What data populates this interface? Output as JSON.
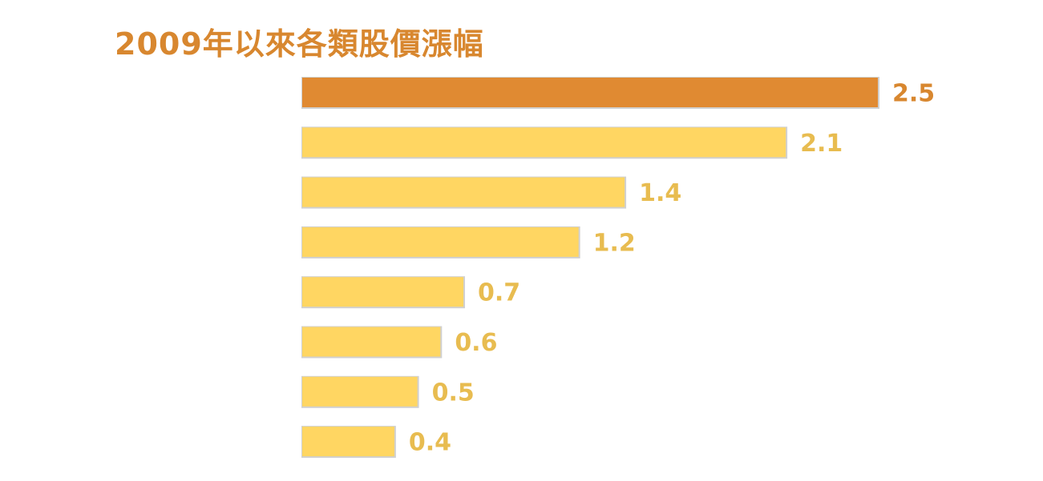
{
  "chart_data": {
    "type": "bar",
    "orientation": "horizontal",
    "title": "2009年以來各類股價漲幅",
    "categories": [
      "",
      "",
      "",
      "",
      "",
      "",
      "",
      ""
    ],
    "values": [
      2.5,
      2.1,
      1.4,
      1.2,
      0.7,
      0.6,
      0.5,
      0.4
    ],
    "value_labels": [
      "2.5",
      "2.1",
      "1.4",
      "1.2",
      "0.7",
      "0.6",
      "0.5",
      "0.4"
    ],
    "highlight_index": 0,
    "colors": {
      "title": "#d8872f",
      "highlight_bar": "#e08a32",
      "highlight_label": "#d8872f",
      "bar": "#ffd662",
      "label": "#e8bc50",
      "bar_shadow": "#d0d0d0",
      "category_label": "#6a6a6a"
    },
    "xlim": [
      0,
      2.5
    ],
    "grid": false,
    "legend": "none"
  }
}
